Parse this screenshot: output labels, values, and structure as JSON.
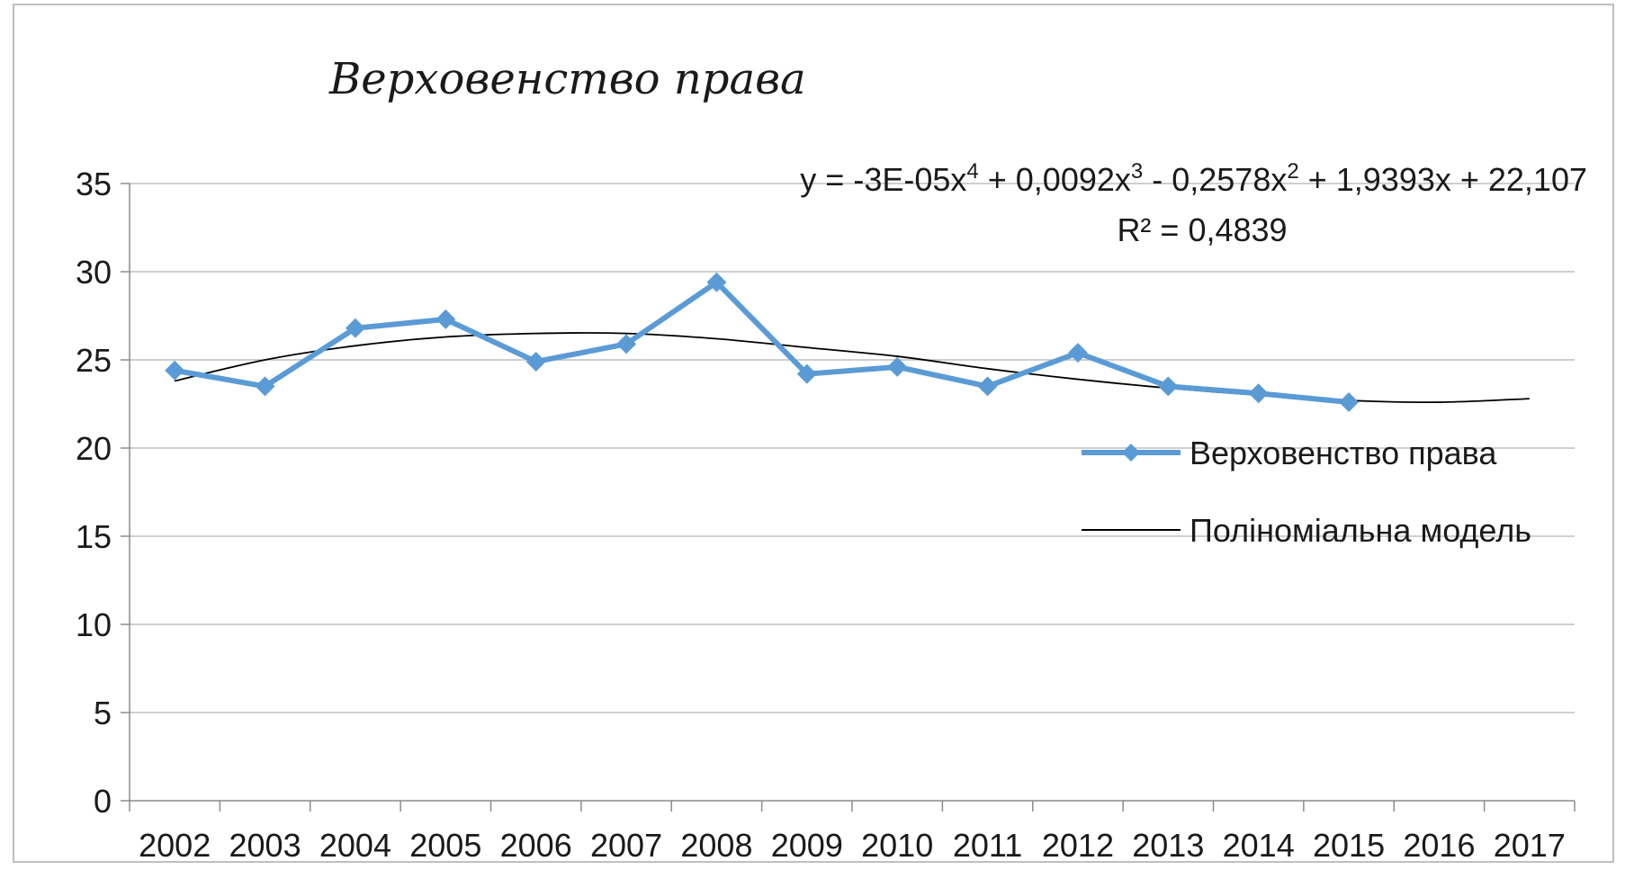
{
  "chart_data": {
    "type": "line",
    "title": "Верховенство права",
    "xlabel": "",
    "ylabel": "",
    "categories": [
      "2002",
      "2003",
      "2004",
      "2005",
      "2006",
      "2007",
      "2008",
      "2009",
      "2010",
      "2011",
      "2012",
      "2013",
      "2014",
      "2015",
      "2016",
      "2017"
    ],
    "ylim": [
      0,
      35
    ],
    "yticks": [
      0,
      5,
      10,
      15,
      20,
      25,
      30,
      35
    ],
    "grid": true,
    "legend_position": "right",
    "series": [
      {
        "name": "Верховенство права",
        "color": "#5b9bd5",
        "marker": "diamond",
        "values": [
          24.4,
          23.5,
          26.8,
          27.3,
          24.9,
          25.9,
          29.4,
          24.2,
          24.6,
          23.5,
          25.4,
          23.5,
          23.1,
          22.6,
          null,
          null
        ]
      },
      {
        "name": "Поліноміальна модель",
        "color": "#000000",
        "marker": "none",
        "type": "trendline",
        "values": [
          23.8,
          25.0,
          25.8,
          26.3,
          26.5,
          26.5,
          26.2,
          25.7,
          25.2,
          24.5,
          23.9,
          23.4,
          23.0,
          22.7,
          22.6,
          22.8
        ]
      }
    ],
    "annotations": {
      "equation_prefix": "y = -3E-05x",
      "eq_exp4": "4",
      "equation_part2": " + 0,0092x",
      "eq_exp3": "3",
      "equation_part3": " - 0,2578x",
      "eq_exp2": "2",
      "equation_part4": " + 1,9393x + 22,107",
      "r_squared": "R² = 0,4839"
    }
  }
}
